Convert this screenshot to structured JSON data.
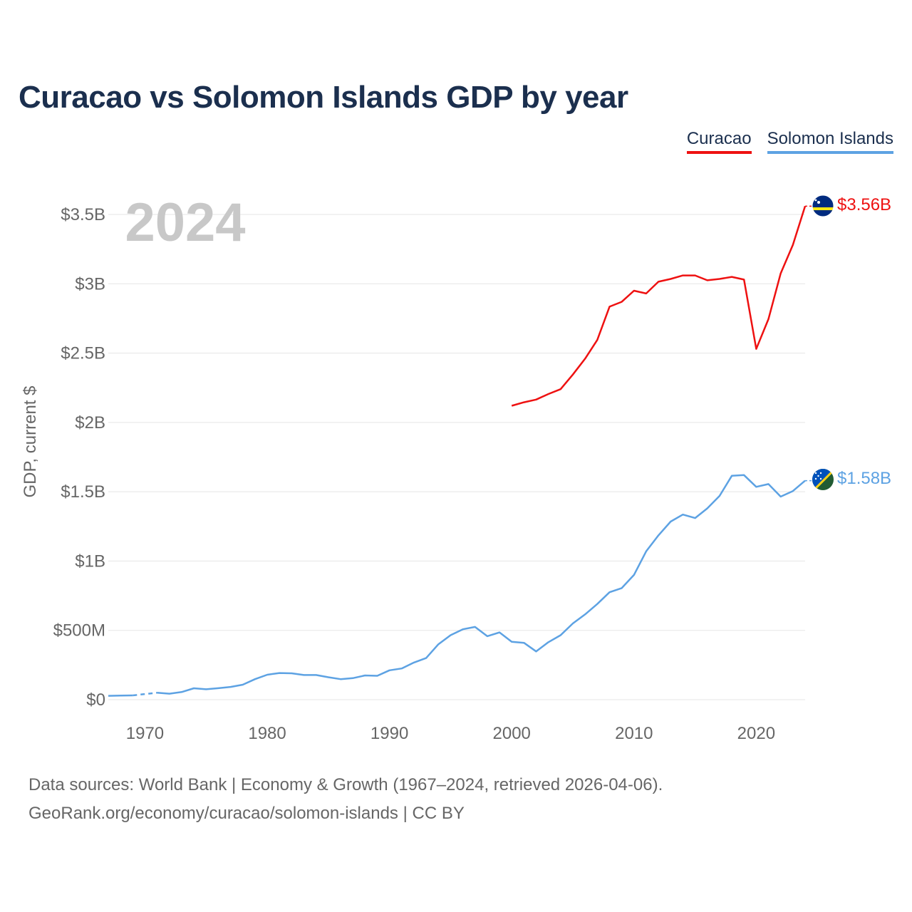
{
  "title": "Curacao vs Solomon Islands GDP by year",
  "colors": {
    "curacao": "#ee1111",
    "solomon": "#5da2e3",
    "title": "#1b2f4e",
    "grid": "#e5e5e5"
  },
  "legend": [
    {
      "label": "Curacao",
      "color": "#ee1111"
    },
    {
      "label": "Solomon Islands",
      "color": "#5da2e3"
    }
  ],
  "footer": {
    "line1": "Data sources: World Bank | Economy & Growth (1967–2024, retrieved 2026-04-06).",
    "line2": "GeoRank.org/economy/curacao/solomon-islands | CC BY"
  },
  "chart_data": {
    "type": "line",
    "title": "Curacao vs Solomon Islands GDP by year",
    "year_label": "2024",
    "ylabel": "GDP, current $",
    "xlabel": "",
    "xlim": [
      1967,
      2024
    ],
    "ylim": [
      0,
      3500000000
    ],
    "x_ticks": [
      1970,
      1980,
      1990,
      2000,
      2010,
      2020
    ],
    "y_ticks": [
      {
        "value": 0,
        "label": "$0"
      },
      {
        "value": 500000000,
        "label": "$500M"
      },
      {
        "value": 1000000000,
        "label": "$1B"
      },
      {
        "value": 1500000000,
        "label": "$1.5B"
      },
      {
        "value": 2000000000,
        "label": "$2B"
      },
      {
        "value": 2500000000,
        "label": "$2.5B"
      },
      {
        "value": 3000000000,
        "label": "$3B"
      },
      {
        "value": 3500000000,
        "label": "$3.5B"
      }
    ],
    "grid": true,
    "series": [
      {
        "name": "Curacao",
        "color": "#ee1111",
        "end_label": "$3.56B",
        "flag": "curacao-flag-icon",
        "x": [
          2000,
          2001,
          2002,
          2003,
          2004,
          2005,
          2006,
          2007,
          2008,
          2009,
          2010,
          2011,
          2012,
          2013,
          2014,
          2015,
          2016,
          2017,
          2018,
          2019,
          2020,
          2021,
          2022,
          2023,
          2024
        ],
        "values": [
          2120000000,
          2145000000,
          2165000000,
          2205000000,
          2240000000,
          2345000000,
          2460000000,
          2595000000,
          2835000000,
          2870000000,
          2950000000,
          2930000000,
          3015000000,
          3035000000,
          3060000000,
          3060000000,
          3025000000,
          3035000000,
          3050000000,
          3030000000,
          2530000000,
          2745000000,
          3075000000,
          3280000000,
          3560000000
        ]
      },
      {
        "name": "Solomon Islands",
        "color": "#5da2e3",
        "end_label": "$1.58B",
        "flag": "solomon-islands-flag-icon",
        "x": [
          1967,
          1968,
          1969,
          1970,
          1971,
          1972,
          1973,
          1974,
          1975,
          1976,
          1977,
          1978,
          1979,
          1980,
          1981,
          1982,
          1983,
          1984,
          1985,
          1986,
          1987,
          1988,
          1989,
          1990,
          1991,
          1992,
          1993,
          1994,
          1995,
          1996,
          1997,
          1998,
          1999,
          2000,
          2001,
          2002,
          2003,
          2004,
          2005,
          2006,
          2007,
          2008,
          2009,
          2010,
          2011,
          2012,
          2013,
          2014,
          2015,
          2016,
          2017,
          2018,
          2019,
          2020,
          2021,
          2022,
          2023,
          2024
        ],
        "values": [
          28000000,
          30000000,
          31000000,
          null,
          50000000,
          43000000,
          55000000,
          82000000,
          75000000,
          83000000,
          92000000,
          108000000,
          148000000,
          180000000,
          192000000,
          190000000,
          178000000,
          178000000,
          162000000,
          148000000,
          155000000,
          175000000,
          172000000,
          212000000,
          225000000,
          268000000,
          300000000,
          400000000,
          465000000,
          508000000,
          525000000,
          458000000,
          485000000,
          418000000,
          410000000,
          348000000,
          415000000,
          465000000,
          550000000,
          615000000,
          690000000,
          775000000,
          805000000,
          900000000,
          1070000000,
          1185000000,
          1285000000,
          1335000000,
          1310000000,
          1380000000,
          1470000000,
          1615000000,
          1620000000,
          1535000000,
          1555000000,
          1465000000,
          1505000000,
          1580000000
        ]
      }
    ]
  }
}
